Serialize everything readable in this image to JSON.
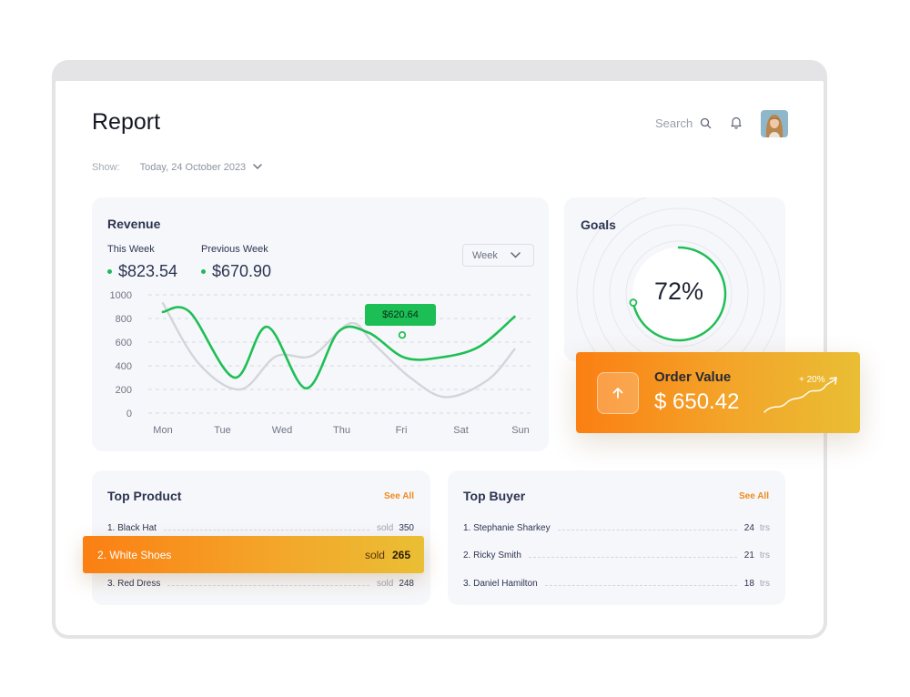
{
  "header": {
    "title": "Report",
    "search_label": "Search",
    "show_label": "Show:",
    "date": "Today, 24 October 2023"
  },
  "revenue": {
    "title": "Revenue",
    "this_week_label": "This Week",
    "this_week_value": "$823.54",
    "previous_week_label": "Previous Week",
    "previous_week_value": "$670.90",
    "period_select": "Week",
    "tooltip": "$620.64"
  },
  "chart_data": {
    "type": "line",
    "categories": [
      "Mon",
      "Tue",
      "Wed",
      "Thu",
      "Fri",
      "Sat",
      "Sun"
    ],
    "yticks": [
      "1000",
      "800",
      "600",
      "400",
      "200",
      "0"
    ],
    "ylim": [
      0,
      1000
    ],
    "grid": true,
    "series": [
      {
        "key": "this_week",
        "color": "#1fbf55",
        "x": [
          0,
          0.45,
          1.2,
          1.75,
          2.4,
          2.95,
          3.45,
          4.05,
          4.65,
          5.3,
          5.9
        ],
        "values": [
          855,
          855,
          300,
          730,
          210,
          690,
          680,
          470,
          470,
          560,
          815
        ]
      },
      {
        "key": "previous_week",
        "color": "#d3d5da",
        "x": [
          0,
          0.6,
          1.3,
          1.9,
          2.5,
          3.15,
          3.55,
          4.15,
          4.75,
          5.45,
          5.9
        ],
        "values": [
          930,
          420,
          200,
          480,
          485,
          760,
          580,
          300,
          135,
          280,
          540
        ]
      }
    ],
    "highlight": {
      "x": 4,
      "value": 660
    }
  },
  "goals": {
    "title": "Goals",
    "percent_label": "72%",
    "percent": 0.72,
    "accent": "#1fbf55"
  },
  "order_value": {
    "title": "Order Value",
    "value": "$ 650.42",
    "growth": "+ 20%"
  },
  "top_product": {
    "title": "Top Product",
    "see_all": "See All",
    "items": [
      {
        "name": "1. Black Hat",
        "meta": "sold",
        "count": "350"
      },
      {
        "name": "2. White Shoes",
        "meta": "sold",
        "count": "265"
      },
      {
        "name": "3. Red Dress",
        "meta": "sold",
        "count": "248"
      }
    ]
  },
  "top_buyer": {
    "title": "Top Buyer",
    "see_all": "See All",
    "items": [
      {
        "name": "1. Stephanie Sharkey",
        "count": "24",
        "unit": "trs"
      },
      {
        "name": "2. Ricky Smith",
        "count": "21",
        "unit": "trs"
      },
      {
        "name": "3. Daniel Hamilton",
        "count": "18",
        "unit": "trs"
      }
    ]
  },
  "icons": {
    "search": "search-icon",
    "bell": "bell-icon",
    "chevron": "chevron-down-icon",
    "order": "arrow-up-icon"
  }
}
